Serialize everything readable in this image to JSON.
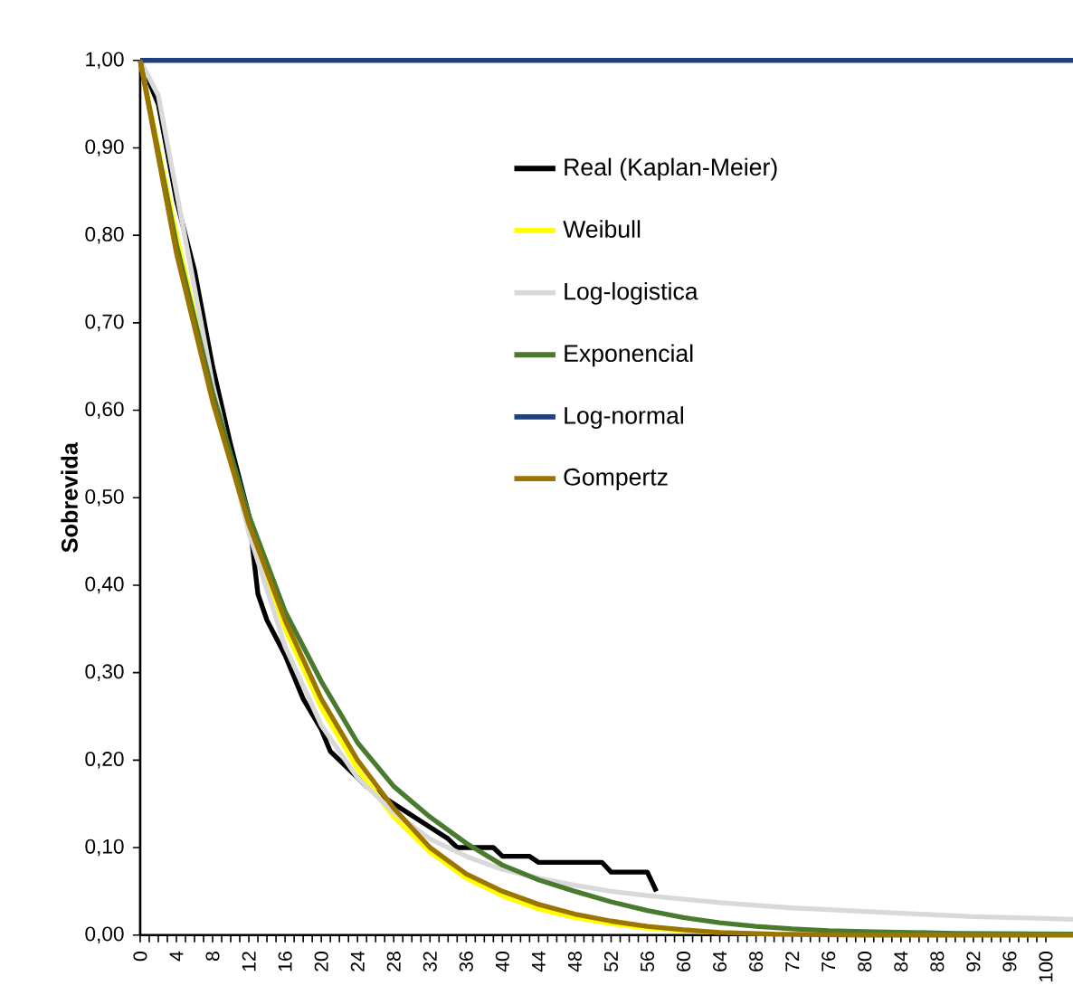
{
  "chart_data": {
    "type": "line",
    "ylabel": "Sobrevida",
    "xlim": [
      0,
      103
    ],
    "ylim": [
      0,
      1
    ],
    "xticks": [
      0,
      4,
      8,
      12,
      16,
      20,
      24,
      28,
      32,
      36,
      40,
      44,
      48,
      52,
      56,
      60,
      64,
      68,
      72,
      76,
      80,
      84,
      88,
      92,
      96,
      100
    ],
    "yticks": [
      {
        "value": 0,
        "label": "0,00"
      },
      {
        "value": 0.1,
        "label": "0,10"
      },
      {
        "value": 0.2,
        "label": "0,20"
      },
      {
        "value": 0.3,
        "label": "0,30"
      },
      {
        "value": 0.4,
        "label": "0,40"
      },
      {
        "value": 0.5,
        "label": "0,50"
      },
      {
        "value": 0.6,
        "label": "0,60"
      },
      {
        "value": 0.7,
        "label": "0,70"
      },
      {
        "value": 0.8,
        "label": "0,80"
      },
      {
        "value": 0.9,
        "label": "0,90"
      },
      {
        "value": 1,
        "label": "1,00"
      }
    ],
    "grid": false,
    "legend": "top right",
    "marker": "none",
    "line_style": "solid",
    "series": [
      {
        "name": "Real (Kaplan-Meier)",
        "color": "#000000",
        "x": [
          0,
          2,
          4,
          6,
          8,
          10,
          12,
          13,
          14,
          16,
          18,
          20,
          21,
          23,
          25,
          28,
          31,
          34,
          35,
          39,
          40,
          43,
          44,
          51,
          52,
          56,
          57
        ],
        "values": [
          1,
          0.95,
          0.84,
          0.76,
          0.65,
          0.56,
          0.48,
          0.39,
          0.36,
          0.32,
          0.27,
          0.235,
          0.21,
          0.19,
          0.17,
          0.15,
          0.13,
          0.11,
          0.1,
          0.1,
          0.09,
          0.09,
          0.083,
          0.083,
          0.072,
          0.072,
          0.05
        ]
      },
      {
        "name": "Weibull",
        "color": "#ffff00",
        "x": [
          0,
          4,
          8,
          12,
          16,
          20,
          24,
          28,
          32,
          36,
          40,
          44,
          48,
          52,
          56,
          60,
          64
        ],
        "values": [
          1,
          0.8,
          0.62,
          0.47,
          0.35,
          0.26,
          0.19,
          0.135,
          0.095,
          0.065,
          0.045,
          0.03,
          0.02,
          0.013,
          0.008,
          0.005,
          0.003
        ]
      },
      {
        "name": "Log-logistica",
        "color": "#d9d9d9",
        "x": [
          0,
          2,
          4,
          8,
          12,
          16,
          20,
          24,
          28,
          32,
          36,
          40,
          44,
          48,
          52,
          56,
          60,
          64,
          68,
          72,
          76,
          80,
          84,
          88,
          92,
          96,
          100,
          103
        ],
        "values": [
          1,
          0.96,
          0.85,
          0.63,
          0.46,
          0.33,
          0.24,
          0.18,
          0.14,
          0.11,
          0.09,
          0.075,
          0.065,
          0.057,
          0.05,
          0.045,
          0.041,
          0.037,
          0.034,
          0.031,
          0.029,
          0.027,
          0.025,
          0.023,
          0.021,
          0.02,
          0.019,
          0.018
        ]
      },
      {
        "name": "Exponencial",
        "color": "#4a7a2e",
        "x": [
          0,
          4,
          8,
          12,
          16,
          20,
          24,
          28,
          32,
          36,
          40,
          44,
          48,
          52,
          56,
          60,
          64,
          68,
          72,
          76,
          80,
          90,
          103
        ],
        "values": [
          1,
          0.79,
          0.62,
          0.48,
          0.37,
          0.29,
          0.22,
          0.17,
          0.135,
          0.105,
          0.08,
          0.063,
          0.05,
          0.038,
          0.028,
          0.02,
          0.014,
          0.01,
          0.007,
          0.005,
          0.004,
          0.002,
          0.001
        ]
      },
      {
        "name": "Log-normal",
        "color": "#1f3f7f",
        "x": [
          0,
          103
        ],
        "values": [
          1,
          1
        ]
      },
      {
        "name": "Gompertz",
        "color": "#9c7400",
        "x": [
          0,
          4,
          8,
          12,
          16,
          20,
          24,
          28,
          32,
          36,
          40,
          44,
          48,
          52,
          56,
          60,
          64,
          70,
          80,
          103
        ],
        "values": [
          1,
          0.78,
          0.61,
          0.47,
          0.36,
          0.27,
          0.2,
          0.145,
          0.1,
          0.07,
          0.05,
          0.035,
          0.024,
          0.016,
          0.01,
          0.006,
          0.003,
          0.001,
          0,
          0
        ]
      }
    ]
  }
}
